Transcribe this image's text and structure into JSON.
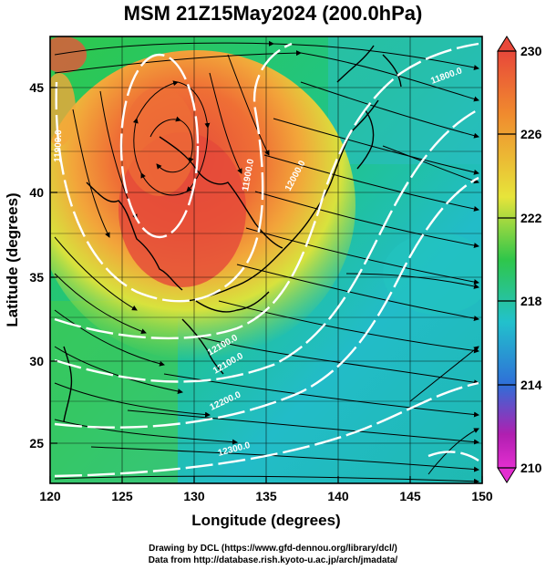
{
  "title": "MSM 21Z15May2024 (200.0hPa)",
  "xlabel": "Longitude (degrees)",
  "ylabel": "Latitude  (degrees)",
  "x_ticks": [
    "120",
    "125",
    "130",
    "135",
    "140",
    "145",
    "150"
  ],
  "y_ticks": [
    "25",
    "30",
    "35",
    "40",
    "45"
  ],
  "colorbar_ticks": [
    "230",
    "226",
    "222",
    "218",
    "214",
    "210"
  ],
  "contour_labels": [
    "11900.0",
    "12000.0",
    "12100.0",
    "12200.0",
    "12300.0",
    "11800.0",
    "12100.0",
    "11900.0"
  ],
  "credits": {
    "line1": "Drawing by DCL (https://www.gfd-dennou.org/library/dcl/)",
    "line2": "Data from http://database.rish.kyoto-u.ac.jp/arch/jmadata/"
  },
  "map": {
    "lon_range": [
      120,
      150
    ],
    "lat_range": [
      22.7,
      47.9
    ],
    "colorbar_range": [
      210,
      230
    ],
    "colors": {
      "max": "#e8483a",
      "warm": "#f08a2e",
      "yellow": "#e7e43a",
      "green": "#2fc64a",
      "cyan": "#22c1cc",
      "blue": "#2f6fd8",
      "purple": "#b01fb0",
      "magenta": "#e32ed0"
    }
  }
}
